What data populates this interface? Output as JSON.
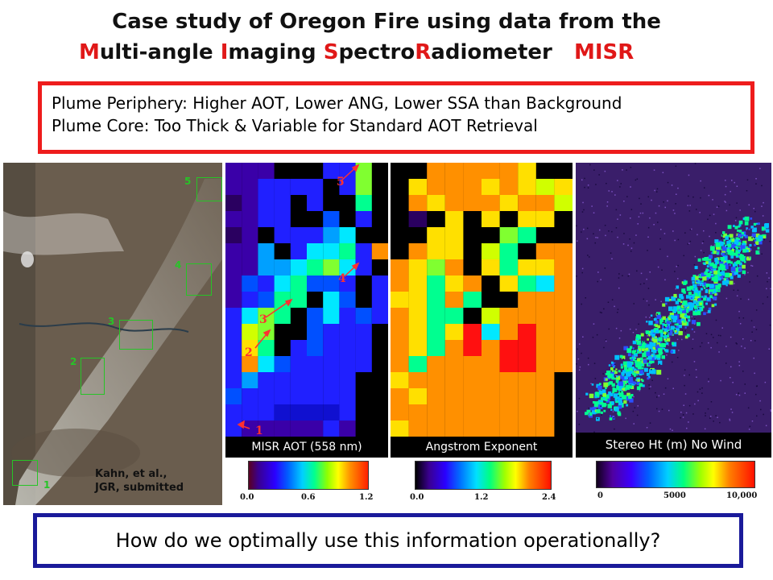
{
  "title": {
    "line1": "Case study of Oregon Fire using data from the",
    "line2_parts": [
      {
        "text": "M",
        "red": true
      },
      {
        "text": "ulti-angle ",
        "red": false
      },
      {
        "text": "I",
        "red": true
      },
      {
        "text": "maging ",
        "red": false
      },
      {
        "text": "S",
        "red": true
      },
      {
        "text": "pectro",
        "red": false
      },
      {
        "text": "R",
        "red": true
      },
      {
        "text": "adiometer   ",
        "red": false
      },
      {
        "text": "MISR",
        "red": true
      }
    ]
  },
  "summary": {
    "line1": "Plume Periphery: Higher AOT, Lower ANG, Lower SSA than Background",
    "line2": "Plume Core: Too Thick & Variable for Standard AOT Retrieval"
  },
  "photo": {
    "box_labels": [
      "1",
      "2",
      "3",
      "4",
      "5"
    ],
    "credit_line1": "Kahn, et al.,",
    "credit_line2": "JGR, submitted"
  },
  "aot_panel": {
    "label": "MISR AOT (558 nm)",
    "ticks": [
      "0.0",
      "0.6",
      "1.2"
    ],
    "arrow_labels": [
      "1",
      "2",
      "3",
      "4",
      "5"
    ]
  },
  "angstrom_panel": {
    "label": "Angstrom Exponent",
    "ticks": [
      "0.0",
      "1.2",
      "2.4"
    ]
  },
  "stereo_panel": {
    "label": "Stereo Ht (m) No Wind",
    "ticks": [
      "0",
      "5000",
      "10,000"
    ]
  },
  "question": "How do we optimally use this information operationally?",
  "colors": {
    "title_red": "#e01818",
    "summary_border": "#ee1c1c",
    "question_border": "#1a1a9a",
    "photo_box_green": "#27c427",
    "arrow_red": "#ff3030"
  }
}
